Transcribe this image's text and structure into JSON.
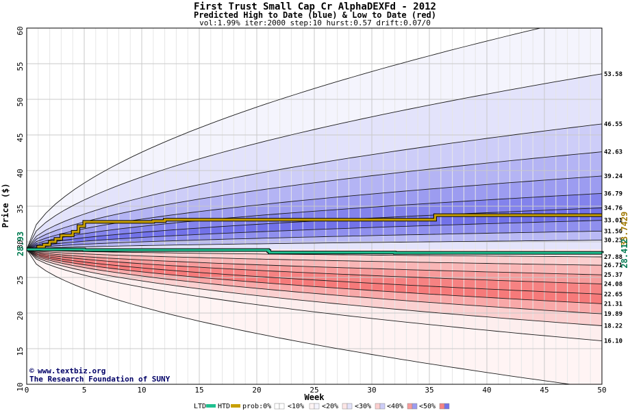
{
  "chart_data": {
    "type": "area",
    "title": "First Trust Small Cap Cr AlphaDEXFd - 2012",
    "subtitle": "Predicted High to Date (blue) &  Low to Date (red)",
    "params": "vol:1.99% iter:2000 step:10 hurst:0.57 drift:0.07/0",
    "xlabel": "Week",
    "ylabel": "Price ($)",
    "xlim": [
      0,
      50
    ],
    "ylim": [
      10,
      60
    ],
    "x_ticks": [
      "0",
      "5",
      "10",
      "15",
      "20",
      "25",
      "30",
      "35",
      "40",
      "45",
      "50"
    ],
    "y_ticks": [
      "10",
      "15",
      "20",
      "25",
      "30",
      "35",
      "40",
      "45",
      "50",
      "55",
      "60"
    ],
    "grid": true,
    "start_price": 28.93,
    "start_label": "28.93",
    "htd_end_label": "33.7429",
    "ltd_end_label": "28.412",
    "right_labels": [
      "53.58",
      "46.55",
      "42.63",
      "39.24",
      "36.79",
      "34.76",
      "33.01",
      "31.50",
      "30.23",
      "27.88",
      "26.71",
      "25.37",
      "24.08",
      "22.65",
      "21.31",
      "19.89",
      "18.22",
      "16.10"
    ],
    "high_bands": [
      {
        "end": 62.0,
        "color": "#f4f4fd"
      },
      {
        "end": 53.58,
        "color": "#e3e3fb"
      },
      {
        "end": 46.55,
        "color": "#cdcdf8"
      },
      {
        "end": 42.63,
        "color": "#b4b4f4"
      },
      {
        "end": 39.24,
        "color": "#9c9cf0"
      },
      {
        "end": 36.79,
        "color": "#8383ec"
      },
      {
        "end": 34.76,
        "color": "#7272e9"
      },
      {
        "end": 33.01,
        "color": "#8f8fee"
      },
      {
        "end": 31.5,
        "color": "#b9b9f5"
      },
      {
        "end": 30.23,
        "color": "#e4e4fb"
      }
    ],
    "low_bands": [
      {
        "end": 27.88,
        "color": "#fde6e6"
      },
      {
        "end": 26.71,
        "color": "#fbcfcf"
      },
      {
        "end": 25.37,
        "color": "#f9b6b6"
      },
      {
        "end": 24.08,
        "color": "#f79b9b"
      },
      {
        "end": 22.65,
        "color": "#f68282"
      },
      {
        "end": 21.31,
        "color": "#f67a7a"
      },
      {
        "end": 19.89,
        "color": "#f9a8a8"
      },
      {
        "end": 18.22,
        "color": "#fbd0d0"
      },
      {
        "end": 16.1,
        "color": "#fdeeee"
      },
      {
        "end": 9.4,
        "color": "#fff4f4"
      }
    ],
    "series": [
      {
        "name": "HTD",
        "color": "#c8a000",
        "x": [
          0,
          1,
          1.5,
          2,
          2.5,
          3,
          4,
          4.5,
          5,
          11,
          12,
          35,
          35.5,
          50
        ],
        "y": [
          28.93,
          29.3,
          29.6,
          30.0,
          30.4,
          30.9,
          31.4,
          32.2,
          32.8,
          32.9,
          33.1,
          33.1,
          33.74,
          33.74
        ]
      },
      {
        "name": "LTD",
        "color": "#20c090",
        "x": [
          0,
          5,
          21,
          21.1,
          32,
          50
        ],
        "y": [
          28.93,
          28.85,
          28.7,
          28.5,
          28.45,
          28.41
        ]
      }
    ]
  },
  "credit": {
    "line1": "www.textbiz.org",
    "line2": "The Research Foundation of SUNY"
  },
  "legend": {
    "ltd": "LTD",
    "htd": "HTD",
    "prob": "prob:0%",
    "items": [
      "<10%",
      "<20%",
      "<30%",
      "<40%",
      "<50%"
    ],
    "colors": {
      "ltd": "#20c090",
      "htd": "#c8a000",
      "p0": [
        "#ffffff",
        "#ffffff"
      ],
      "p10": [
        "#fff4f4",
        "#f4f4fd"
      ],
      "p20": [
        "#fde6e6",
        "#e3e3fb"
      ],
      "p30": [
        "#fbcfcf",
        "#cdcdf8"
      ],
      "p40": [
        "#f79b9b",
        "#9c9cf0"
      ],
      "p50": [
        "#f68282",
        "#7272e9"
      ]
    }
  }
}
